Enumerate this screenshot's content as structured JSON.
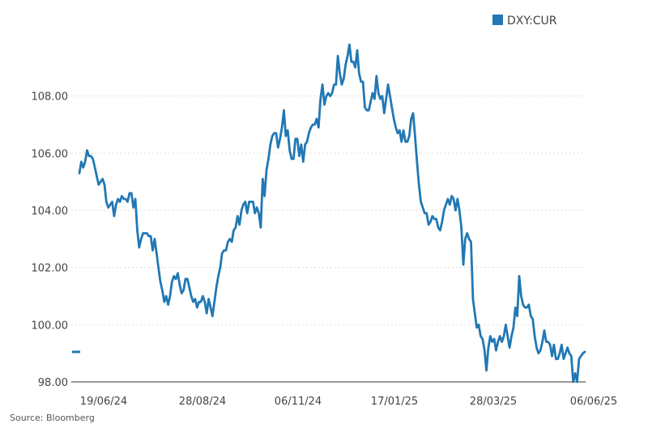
{
  "chart_data": {
    "type": "line",
    "title": "",
    "xlabel": "",
    "ylabel": "",
    "ylim": [
      98,
      110
    ],
    "y_ticks": [
      "98.00",
      "100.00",
      "102.00",
      "104.00",
      "106.00",
      "108.00"
    ],
    "y_tick_values": [
      98,
      100,
      102,
      104,
      106,
      108
    ],
    "x_ticks": [
      "19/06/24",
      "28/08/24",
      "06/11/24",
      "17/01/25",
      "28/03/25",
      "06/06/25"
    ],
    "grid": "horizontal dotted",
    "legend_position": "top-right",
    "last_value_marker": 99.05,
    "colors": {
      "line": "#2178b4",
      "grid": "#dddddd",
      "axis": "#333333",
      "text": "#444444"
    },
    "series": [
      {
        "name": "DXY:CUR",
        "values": [
          105.3,
          105.7,
          105.5,
          105.7,
          106.1,
          105.9,
          105.9,
          105.8,
          105.5,
          105.2,
          104.9,
          105.0,
          105.1,
          104.9,
          104.3,
          104.1,
          104.2,
          104.3,
          103.8,
          104.2,
          104.4,
          104.3,
          104.5,
          104.4,
          104.4,
          104.3,
          104.6,
          104.6,
          104.1,
          104.4,
          103.3,
          102.7,
          103.0,
          103.2,
          103.2,
          103.2,
          103.1,
          103.1,
          102.6,
          103.0,
          102.5,
          102.0,
          101.5,
          101.2,
          100.8,
          101.0,
          100.7,
          101.0,
          101.5,
          101.7,
          101.6,
          101.8,
          101.4,
          101.1,
          101.2,
          101.6,
          101.6,
          101.3,
          101.0,
          100.8,
          100.9,
          100.6,
          100.8,
          100.8,
          101.0,
          100.8,
          100.4,
          100.9,
          100.6,
          100.3,
          100.8,
          101.3,
          101.7,
          102.0,
          102.5,
          102.6,
          102.6,
          102.9,
          103.0,
          102.9,
          103.3,
          103.4,
          103.8,
          103.5,
          104.0,
          104.2,
          104.3,
          103.9,
          104.3,
          104.3,
          104.3,
          103.9,
          104.1,
          103.9,
          103.4,
          105.1,
          104.5,
          105.4,
          105.8,
          106.3,
          106.6,
          106.7,
          106.7,
          106.2,
          106.5,
          106.9,
          107.5,
          106.6,
          106.8,
          106.1,
          105.8,
          105.8,
          106.5,
          106.5,
          105.9,
          106.3,
          105.7,
          106.3,
          106.4,
          106.7,
          106.9,
          107.0,
          107.0,
          107.2,
          106.9,
          107.9,
          108.4,
          107.7,
          108.0,
          108.1,
          108.0,
          108.1,
          108.4,
          108.4,
          109.4,
          108.8,
          108.4,
          108.6,
          109.1,
          109.4,
          109.8,
          109.2,
          109.2,
          109.0,
          109.6,
          108.8,
          108.5,
          108.5,
          107.6,
          107.5,
          107.5,
          107.8,
          108.1,
          107.9,
          108.7,
          108.1,
          107.9,
          108.0,
          107.4,
          107.9,
          108.4,
          108.0,
          107.6,
          107.2,
          106.9,
          106.7,
          106.8,
          106.4,
          106.8,
          106.4,
          106.4,
          106.6,
          107.2,
          107.4,
          106.6,
          105.7,
          104.9,
          104.3,
          104.1,
          103.9,
          103.9,
          103.5,
          103.6,
          103.8,
          103.7,
          103.7,
          103.4,
          103.3,
          103.6,
          104.0,
          104.2,
          104.4,
          104.2,
          104.5,
          104.4,
          104.0,
          104.4,
          104.0,
          103.4,
          102.1,
          103.0,
          103.2,
          103.0,
          102.9,
          100.9,
          100.4,
          99.9,
          100.0,
          99.6,
          99.5,
          99.1,
          98.4,
          99.2,
          99.6,
          99.4,
          99.5,
          99.1,
          99.4,
          99.6,
          99.4,
          99.6,
          100.0,
          99.6,
          99.2,
          99.6,
          99.9,
          100.6,
          100.3,
          101.7,
          101.0,
          100.7,
          100.6,
          100.6,
          100.7,
          100.3,
          100.2,
          99.6,
          99.2,
          99.0,
          99.1,
          99.4,
          99.8,
          99.4,
          99.4,
          99.3,
          98.9,
          99.3,
          98.8,
          98.8,
          99.0,
          99.3,
          98.8,
          99.0,
          99.2,
          99.0,
          98.9,
          98.0,
          98.3,
          98.0,
          98.8,
          98.9,
          99.0,
          99.05
        ]
      }
    ]
  },
  "source_label": "Source: Bloomberg"
}
